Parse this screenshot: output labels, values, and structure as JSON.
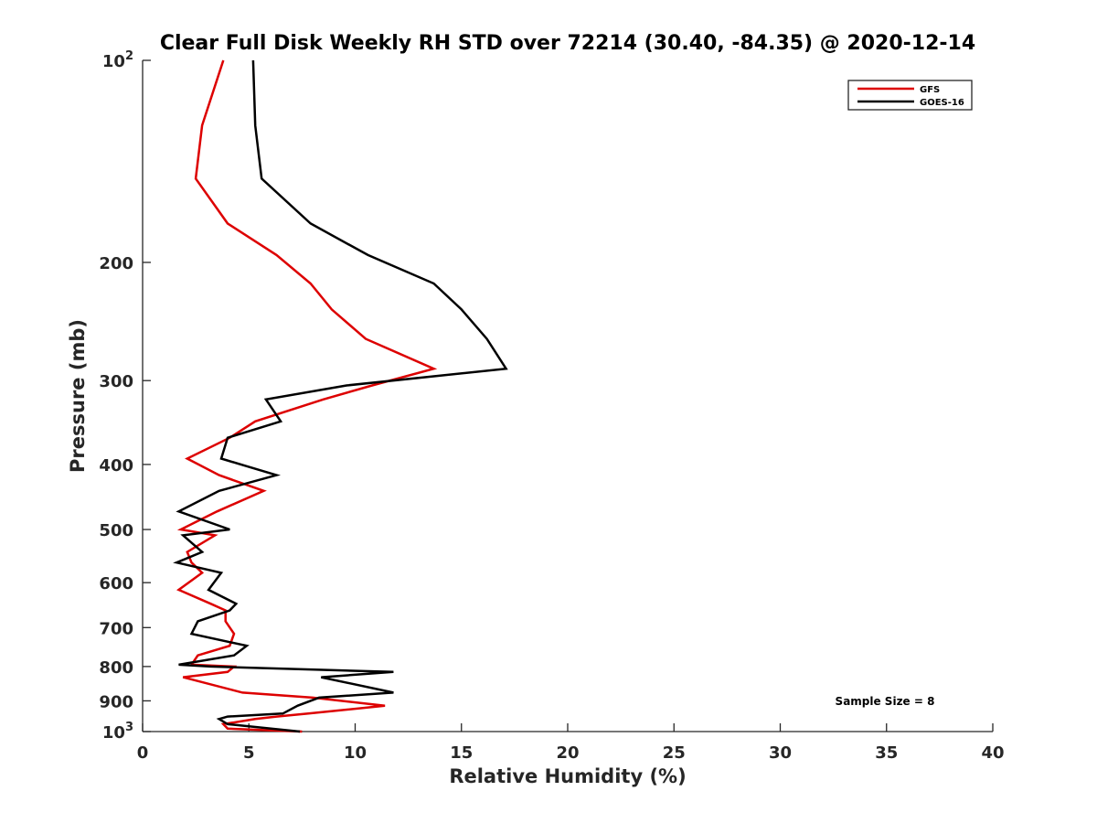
{
  "chart_data": {
    "type": "line",
    "title": "Clear Full Disk Weekly RH STD over 72214 (30.40, -84.35) @ 2020-12-14",
    "xlabel": "Relative Humidity (%)",
    "ylabel": "Pressure (mb)",
    "xlim": [
      0,
      40
    ],
    "ylim": [
      100,
      1000
    ],
    "yscale": "log",
    "y_reversed": true,
    "grid": false,
    "legend_position": "top-right",
    "x_ticks": [
      {
        "value": 0,
        "label": "0"
      },
      {
        "value": 5,
        "label": "5"
      },
      {
        "value": 10,
        "label": "10"
      },
      {
        "value": 15,
        "label": "15"
      },
      {
        "value": 20,
        "label": "20"
      },
      {
        "value": 25,
        "label": "25"
      },
      {
        "value": 30,
        "label": "30"
      },
      {
        "value": 35,
        "label": "35"
      },
      {
        "value": 40,
        "label": "40"
      }
    ],
    "y_ticks": [
      {
        "value": 100,
        "label": "10",
        "sup": "2"
      },
      {
        "value": 200,
        "label": "200",
        "sup": ""
      },
      {
        "value": 300,
        "label": "300",
        "sup": ""
      },
      {
        "value": 400,
        "label": "400",
        "sup": ""
      },
      {
        "value": 500,
        "label": "500",
        "sup": ""
      },
      {
        "value": 600,
        "label": "600",
        "sup": ""
      },
      {
        "value": 700,
        "label": "700",
        "sup": ""
      },
      {
        "value": 800,
        "label": "800",
        "sup": ""
      },
      {
        "value": 900,
        "label": "900",
        "sup": ""
      },
      {
        "value": 1000,
        "label": "10",
        "sup": "3"
      }
    ],
    "annotation": "Sample Size = 8",
    "series": [
      {
        "name": "GFS",
        "color": "#dd0000",
        "points": [
          [
            3.8,
            100
          ],
          [
            2.8,
            125
          ],
          [
            2.5,
            150
          ],
          [
            4.0,
            175
          ],
          [
            6.3,
            195
          ],
          [
            7.9,
            215
          ],
          [
            8.9,
            235
          ],
          [
            10.5,
            260
          ],
          [
            13.7,
            288
          ],
          [
            10.8,
            305
          ],
          [
            8.5,
            320
          ],
          [
            5.3,
            345
          ],
          [
            4.1,
            365
          ],
          [
            2.1,
            392
          ],
          [
            3.6,
            415
          ],
          [
            5.7,
            438
          ],
          [
            3.5,
            470
          ],
          [
            1.8,
            500
          ],
          [
            3.4,
            510
          ],
          [
            2.1,
            540
          ],
          [
            2.3,
            560
          ],
          [
            2.8,
            580
          ],
          [
            1.7,
            615
          ],
          [
            3.2,
            645
          ],
          [
            3.9,
            660
          ],
          [
            3.9,
            685
          ],
          [
            4.3,
            715
          ],
          [
            4.1,
            745
          ],
          [
            2.6,
            770
          ],
          [
            2.3,
            795
          ],
          [
            4.3,
            800
          ],
          [
            4.0,
            815
          ],
          [
            1.9,
            830
          ],
          [
            4.7,
            875
          ],
          [
            8.0,
            890
          ],
          [
            11.4,
            915
          ],
          [
            7.8,
            940
          ],
          [
            6.3,
            950
          ],
          [
            5.3,
            958
          ],
          [
            3.8,
            975
          ],
          [
            4.0,
            990
          ],
          [
            7.5,
            1000
          ]
        ]
      },
      {
        "name": "GOES-16",
        "color": "#000000",
        "points": [
          [
            5.2,
            100
          ],
          [
            5.3,
            125
          ],
          [
            5.6,
            150
          ],
          [
            7.9,
            175
          ],
          [
            10.6,
            195
          ],
          [
            13.7,
            215
          ],
          [
            15.0,
            235
          ],
          [
            16.2,
            260
          ],
          [
            17.1,
            288
          ],
          [
            9.6,
            305
          ],
          [
            5.8,
            320
          ],
          [
            6.5,
            345
          ],
          [
            4.0,
            365
          ],
          [
            3.7,
            392
          ],
          [
            6.3,
            415
          ],
          [
            3.6,
            438
          ],
          [
            1.7,
            470
          ],
          [
            4.1,
            500
          ],
          [
            1.9,
            510
          ],
          [
            2.8,
            540
          ],
          [
            1.6,
            560
          ],
          [
            3.7,
            580
          ],
          [
            3.1,
            615
          ],
          [
            4.4,
            645
          ],
          [
            4.1,
            660
          ],
          [
            2.6,
            685
          ],
          [
            2.3,
            715
          ],
          [
            4.9,
            745
          ],
          [
            4.3,
            770
          ],
          [
            1.7,
            795
          ],
          [
            3.2,
            800
          ],
          [
            11.8,
            815
          ],
          [
            8.4,
            830
          ],
          [
            11.8,
            875
          ],
          [
            8.3,
            890
          ],
          [
            7.3,
            915
          ],
          [
            6.6,
            940
          ],
          [
            4.0,
            950
          ],
          [
            3.6,
            958
          ],
          [
            4.0,
            975
          ],
          [
            7.4,
            1000
          ]
        ]
      }
    ]
  }
}
